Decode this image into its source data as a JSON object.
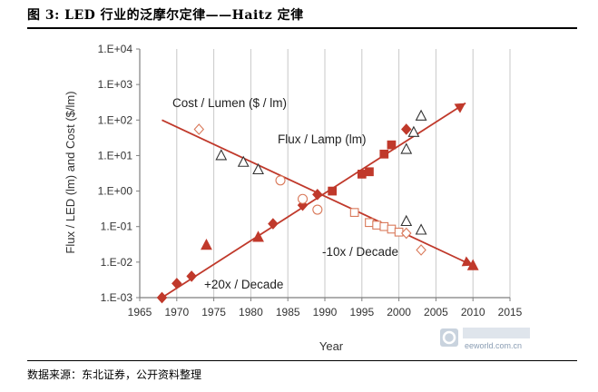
{
  "figure": {
    "title": "图 3:  LED 行业的泛摩尔定律——Haitz 定律",
    "source": "数据来源：东北证券，公开资料整理"
  },
  "watermark": {
    "text": "eeworld.com.cn"
  },
  "colors": {
    "marker": "#c0392b",
    "line": "#c0392b",
    "hollow": "#d9795a",
    "axis": "#7f7f7f",
    "triangle_open": "#333333"
  },
  "chart_data": {
    "type": "scatter",
    "y_scale": "log",
    "xlabel": "Year",
    "ylabel": "Flux / LED  (lm) and Cost  ($/lm)",
    "xlim": [
      1965,
      2015
    ],
    "ylim": [
      0.001,
      10000
    ],
    "x_ticks": [
      "1965",
      "1970",
      "1975",
      "1980",
      "1985",
      "1990",
      "1995",
      "2000",
      "2005",
      "2010",
      "2015"
    ],
    "y_ticks": [
      "1.E-03",
      "1.E-02",
      "1.E-01",
      "1.E+00",
      "1.E+01",
      "1.E+02",
      "1.E+03",
      "1.E+04"
    ],
    "grid": "vertical",
    "annotations": [
      "Cost / Lumen  ($ / lm)",
      "Flux / Lamp (lm)",
      "-10x / Decade",
      "+20x / Decade"
    ],
    "trend_lines": [
      {
        "label": "+20x / Decade",
        "from": [
          1968,
          0.001
        ],
        "to": [
          2009,
          300
        ]
      },
      {
        "label": "-10x / Decade",
        "from": [
          1968,
          100
        ],
        "to": [
          2010,
          0.008
        ]
      }
    ],
    "series": [
      {
        "marker": "filled-diamond",
        "points": [
          [
            1968,
            0.001
          ],
          [
            1970,
            0.0025
          ],
          [
            1972,
            0.004
          ],
          [
            1983,
            0.12
          ],
          [
            1987,
            0.4
          ],
          [
            1989,
            0.8
          ],
          [
            2001,
            55
          ]
        ]
      },
      {
        "marker": "filled-square",
        "points": [
          [
            1991,
            1.0
          ],
          [
            1995,
            3.0
          ],
          [
            1996,
            3.5
          ],
          [
            1998,
            11
          ],
          [
            1999,
            20
          ]
        ]
      },
      {
        "marker": "filled-triangle",
        "points": [
          [
            1974,
            0.03
          ],
          [
            1981,
            0.05
          ],
          [
            2010,
            0.008
          ]
        ]
      },
      {
        "marker": "open-triangle",
        "points": [
          [
            1976,
            10
          ],
          [
            1979,
            6.5
          ],
          [
            1981,
            4
          ],
          [
            2001,
            0.14
          ],
          [
            2003,
            0.08
          ],
          [
            2001,
            15
          ],
          [
            2002,
            45
          ],
          [
            2003,
            130
          ]
        ]
      },
      {
        "marker": "open-circle",
        "points": [
          [
            1984,
            2.0
          ],
          [
            1987,
            0.6
          ],
          [
            1989,
            0.3
          ]
        ]
      },
      {
        "marker": "open-square",
        "points": [
          [
            1994,
            0.25
          ],
          [
            1996,
            0.13
          ],
          [
            1997,
            0.11
          ],
          [
            1998,
            0.1
          ],
          [
            1999,
            0.085
          ],
          [
            2000,
            0.07
          ]
        ]
      },
      {
        "marker": "open-diamond",
        "points": [
          [
            1973,
            55
          ],
          [
            2001,
            0.065
          ],
          [
            2003,
            0.022
          ]
        ]
      }
    ]
  }
}
